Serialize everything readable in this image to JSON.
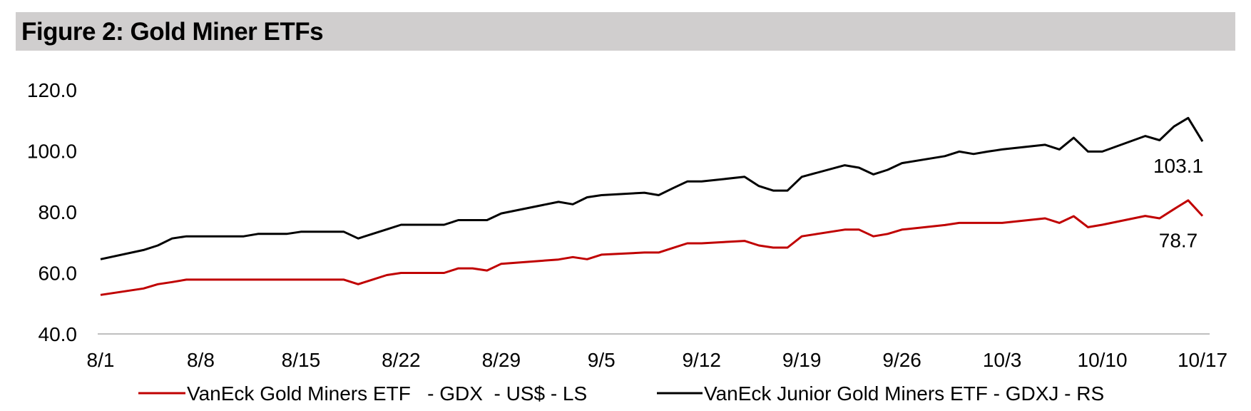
{
  "header": {
    "title": "Figure 2: Gold Miner ETFs"
  },
  "chart_data": {
    "type": "line",
    "title": "Figure 2: Gold Miner ETFs",
    "xlabel": "",
    "ylabel": "",
    "ylim": [
      40,
      120
    ],
    "yticks": [
      "40.0",
      "60.0",
      "80.0",
      "100.0",
      "120.0"
    ],
    "xticks": [
      "8/1",
      "8/8",
      "8/15",
      "8/22",
      "8/29",
      "9/5",
      "9/12",
      "9/19",
      "9/26",
      "10/3",
      "10/10",
      "10/17"
    ],
    "grid": false,
    "legend_position": "bottom",
    "series": [
      {
        "name": "VanEck Gold Miners ETF   - GDX  - US$ - LS",
        "color": "#c00000",
        "end_label": "78.7",
        "points": [
          [
            "8/1",
            52.8
          ],
          [
            "8/4",
            54.9
          ],
          [
            "8/5",
            56.3
          ],
          [
            "8/6",
            57.0
          ],
          [
            "8/7",
            57.8
          ],
          [
            "8/11",
            57.8
          ],
          [
            "8/12",
            57.8
          ],
          [
            "8/13",
            57.8
          ],
          [
            "8/14",
            57.8
          ],
          [
            "8/15",
            57.8
          ],
          [
            "8/18",
            57.8
          ],
          [
            "8/19",
            56.3
          ],
          [
            "8/20",
            57.8
          ],
          [
            "8/21",
            59.3
          ],
          [
            "8/22",
            60.0
          ],
          [
            "8/25",
            60.0
          ],
          [
            "8/26",
            61.5
          ],
          [
            "8/27",
            61.5
          ],
          [
            "8/28",
            60.8
          ],
          [
            "8/29",
            63.0
          ],
          [
            "9/2",
            64.4
          ],
          [
            "9/3",
            65.2
          ],
          [
            "9/4",
            64.5
          ],
          [
            "9/5",
            66.0
          ],
          [
            "9/8",
            66.7
          ],
          [
            "9/9",
            66.7
          ],
          [
            "9/10",
            68.2
          ],
          [
            "9/11",
            69.7
          ],
          [
            "9/12",
            69.7
          ],
          [
            "9/15",
            70.5
          ],
          [
            "9/16",
            69.0
          ],
          [
            "9/17",
            68.3
          ],
          [
            "9/18",
            68.3
          ],
          [
            "9/19",
            72.0
          ],
          [
            "9/22",
            74.2
          ],
          [
            "9/23",
            74.2
          ],
          [
            "9/24",
            72.0
          ],
          [
            "9/25",
            72.8
          ],
          [
            "9/26",
            74.2
          ],
          [
            "9/29",
            75.7
          ],
          [
            "9/30",
            76.4
          ],
          [
            "10/1",
            76.4
          ],
          [
            "10/2",
            76.4
          ],
          [
            "10/3",
            76.4
          ],
          [
            "10/6",
            77.9
          ],
          [
            "10/7",
            76.4
          ],
          [
            "10/8",
            78.6
          ],
          [
            "10/9",
            75.0
          ],
          [
            "10/10",
            75.8
          ],
          [
            "10/13",
            78.7
          ],
          [
            "10/14",
            77.9
          ],
          [
            "10/15",
            80.9
          ],
          [
            "10/16",
            83.8
          ],
          [
            "10/17",
            78.7
          ]
        ]
      },
      {
        "name": "VanEck Junior Gold Miners ETF - GDXJ - RS",
        "color": "#000000",
        "end_label": "103.1",
        "points": [
          [
            "8/1",
            64.5
          ],
          [
            "8/4",
            67.5
          ],
          [
            "8/5",
            69.0
          ],
          [
            "8/6",
            71.3
          ],
          [
            "8/7",
            72.0
          ],
          [
            "8/11",
            72.0
          ],
          [
            "8/12",
            72.8
          ],
          [
            "8/13",
            72.8
          ],
          [
            "8/14",
            72.8
          ],
          [
            "8/15",
            73.5
          ],
          [
            "8/18",
            73.5
          ],
          [
            "8/19",
            71.3
          ],
          [
            "8/20",
            72.8
          ],
          [
            "8/21",
            74.3
          ],
          [
            "8/22",
            75.8
          ],
          [
            "8/25",
            75.8
          ],
          [
            "8/26",
            77.3
          ],
          [
            "8/27",
            77.3
          ],
          [
            "8/28",
            77.3
          ],
          [
            "8/29",
            79.5
          ],
          [
            "9/2",
            83.3
          ],
          [
            "9/3",
            82.5
          ],
          [
            "9/4",
            84.8
          ],
          [
            "9/5",
            85.5
          ],
          [
            "9/8",
            86.3
          ],
          [
            "9/9",
            85.5
          ],
          [
            "9/10",
            87.8
          ],
          [
            "9/11",
            90.0
          ],
          [
            "9/12",
            90.0
          ],
          [
            "9/15",
            91.5
          ],
          [
            "9/16",
            88.5
          ],
          [
            "9/17",
            87.0
          ],
          [
            "9/18",
            87.0
          ],
          [
            "9/19",
            91.5
          ],
          [
            "9/22",
            95.3
          ],
          [
            "9/23",
            94.5
          ],
          [
            "9/24",
            92.3
          ],
          [
            "9/25",
            93.8
          ],
          [
            "9/26",
            96.0
          ],
          [
            "9/29",
            98.3
          ],
          [
            "9/30",
            99.8
          ],
          [
            "10/1",
            99.0
          ],
          [
            "10/2",
            99.8
          ],
          [
            "10/3",
            100.5
          ],
          [
            "10/6",
            102.0
          ],
          [
            "10/7",
            100.5
          ],
          [
            "10/8",
            104.3
          ],
          [
            "10/9",
            99.8
          ],
          [
            "10/10",
            99.8
          ],
          [
            "10/13",
            104.9
          ],
          [
            "10/14",
            103.5
          ],
          [
            "10/15",
            108.0
          ],
          [
            "10/16",
            110.8
          ],
          [
            "10/17",
            103.1
          ]
        ]
      }
    ]
  }
}
